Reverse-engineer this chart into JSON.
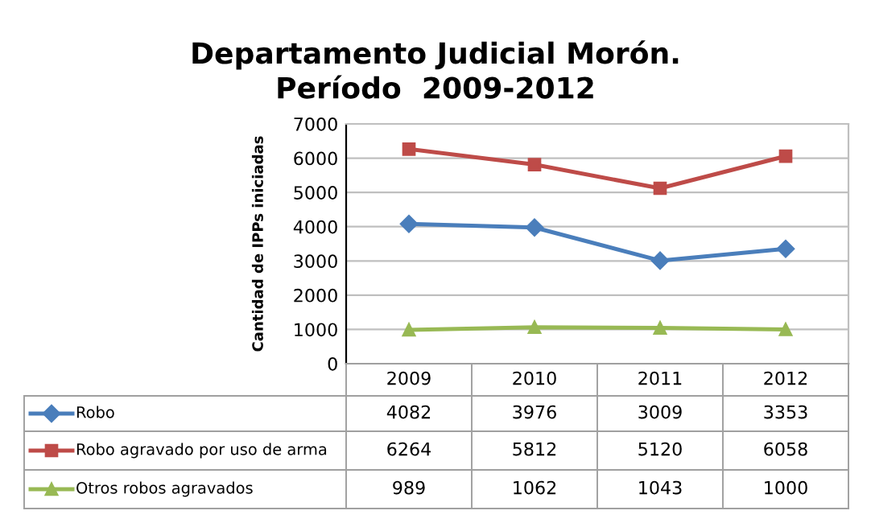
{
  "chart_data": {
    "type": "line",
    "title": "Departamento Judicial Morón.\nPeríodo  2009-2012",
    "ylabel": "Cantidad de IPPs iniciadas",
    "categories": [
      "2009",
      "2010",
      "2011",
      "2012"
    ],
    "series": [
      {
        "name": "Robo",
        "color": "#4a7ebb",
        "marker": "diamond",
        "values": [
          4082,
          3976,
          3009,
          3353
        ]
      },
      {
        "name": "Robo agravado por uso de arma",
        "color": "#be4b48",
        "marker": "square",
        "values": [
          6264,
          5812,
          5120,
          6058
        ]
      },
      {
        "name": "Otros robos agravados",
        "color": "#98b954",
        "marker": "triangle",
        "values": [
          989,
          1062,
          1043,
          1000
        ]
      }
    ],
    "ylim": [
      0,
      7000
    ],
    "yticks": [
      0,
      1000,
      2000,
      3000,
      4000,
      5000,
      6000,
      7000
    ],
    "grid": "y",
    "data_labels": true,
    "legend": "bottom"
  }
}
